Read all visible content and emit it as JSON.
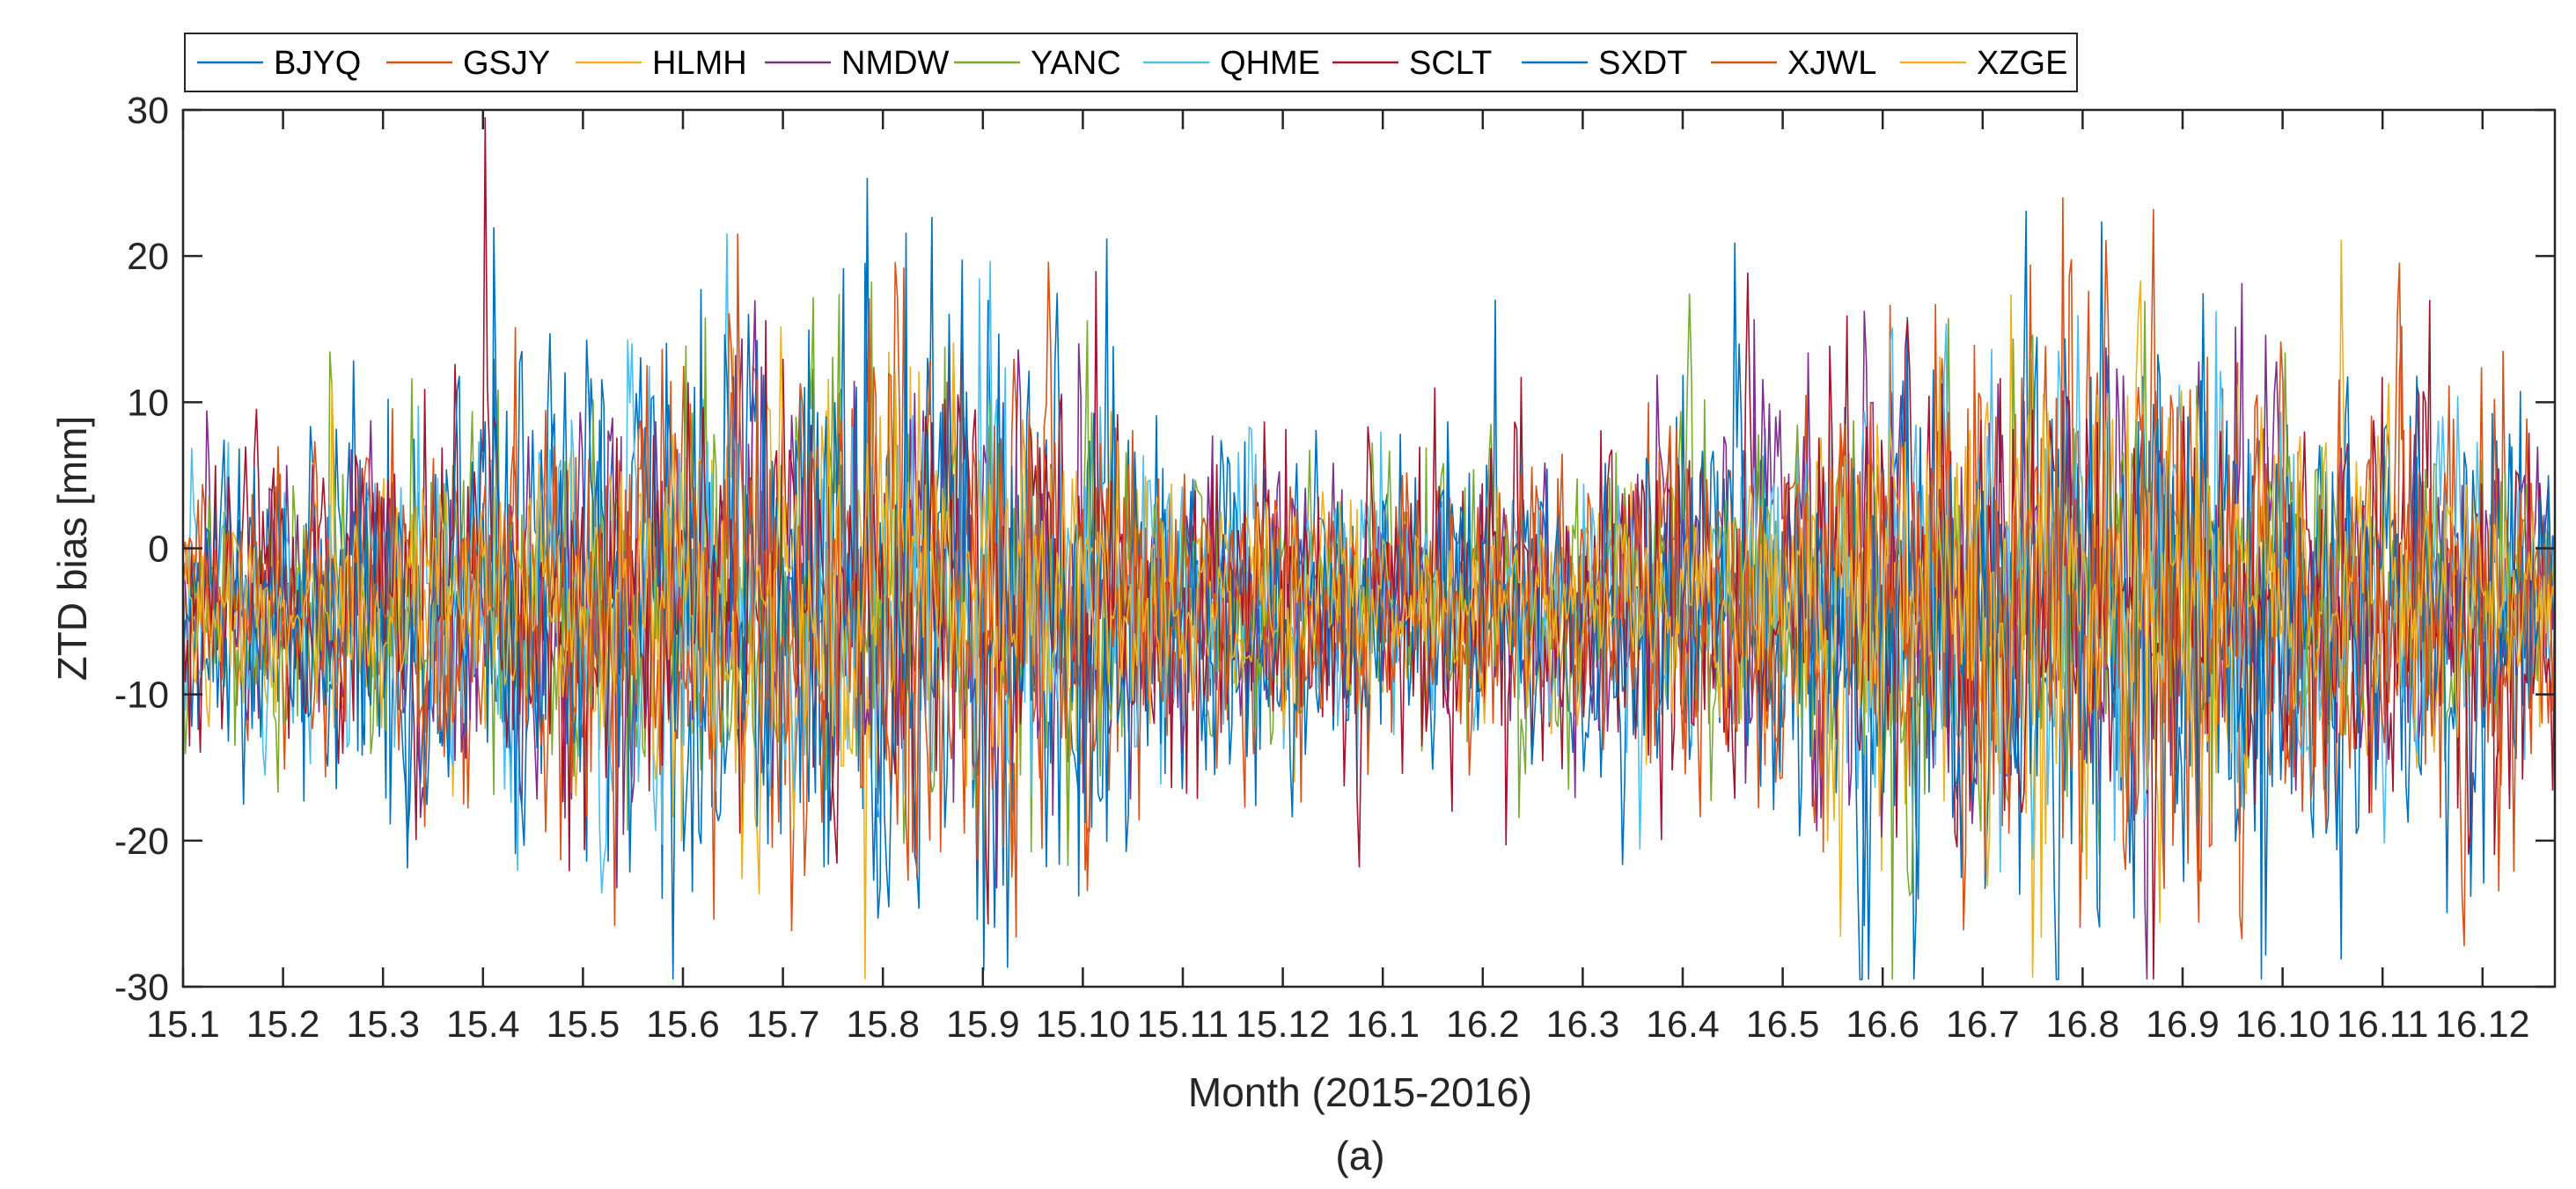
{
  "chart_data": {
    "type": "line",
    "title": "",
    "caption": "(a)",
    "xlabel": "Month (2015-2016)",
    "ylabel": "ZTD bias [mm]",
    "ylim": [
      -30,
      30
    ],
    "yticks": [
      30,
      20,
      10,
      0,
      -10,
      -20,
      -30
    ],
    "ytick_labels": [
      "30",
      "20",
      "10",
      "0",
      "-10",
      "-20",
      "-30"
    ],
    "x_categories": [
      "15.1",
      "15.2",
      "15.3",
      "15.4",
      "15.5",
      "15.6",
      "15.7",
      "15.8",
      "15.9",
      "15.10",
      "15.11",
      "15.12",
      "16.1",
      "16.2",
      "16.3",
      "16.4",
      "16.5",
      "16.6",
      "16.7",
      "16.8",
      "16.9",
      "16.10",
      "16.11",
      "16.12"
    ],
    "grid": false,
    "legend_position": "top",
    "series": [
      {
        "name": "BJYQ",
        "color": "#0072BD",
        "amplitude": 8.0,
        "noise_profile": [
          4,
          5,
          6,
          7,
          8,
          9,
          10,
          10,
          9,
          8,
          6,
          5,
          5,
          5,
          6,
          7,
          8,
          9,
          10,
          10,
          9,
          8,
          7,
          6
        ]
      },
      {
        "name": "GSJY",
        "color": "#D95319",
        "amplitude": 7.0,
        "noise_profile": [
          3,
          4,
          5,
          6,
          7,
          8,
          9,
          9,
          8,
          7,
          5,
          4,
          4,
          4,
          5,
          6,
          7,
          8,
          9,
          9,
          8,
          7,
          6,
          5
        ]
      },
      {
        "name": "HLMH",
        "color": "#EDB120",
        "amplitude": 6.0,
        "noise_profile": [
          3,
          3,
          4,
          5,
          6,
          7,
          8,
          8,
          7,
          6,
          4,
          3,
          3,
          3,
          4,
          5,
          6,
          7,
          8,
          8,
          7,
          6,
          5,
          4
        ]
      },
      {
        "name": "NMDW",
        "color": "#7E2F8E",
        "amplitude": 6.0,
        "noise_profile": [
          4,
          4,
          5,
          6,
          7,
          8,
          8,
          8,
          7,
          6,
          5,
          4,
          4,
          4,
          5,
          6,
          7,
          7,
          8,
          8,
          7,
          6,
          5,
          5
        ]
      },
      {
        "name": "YANC",
        "color": "#77AC30",
        "amplitude": 6.5,
        "noise_profile": [
          5,
          5,
          5,
          6,
          7,
          8,
          8,
          8,
          7,
          6,
          5,
          5,
          5,
          5,
          5,
          6,
          7,
          8,
          8,
          8,
          7,
          6,
          5,
          5
        ]
      },
      {
        "name": "QHME",
        "color": "#4DBEEE",
        "amplitude": 6.0,
        "noise_profile": [
          4,
          4,
          5,
          6,
          7,
          8,
          8,
          8,
          7,
          6,
          5,
          4,
          4,
          4,
          5,
          6,
          7,
          8,
          8,
          8,
          7,
          6,
          5,
          4
        ]
      },
      {
        "name": "SCLT",
        "color": "#A2142F",
        "amplitude": 7.0,
        "noise_profile": [
          6,
          6,
          6,
          6,
          7,
          8,
          8,
          8,
          7,
          6,
          6,
          6,
          6,
          6,
          6,
          7,
          8,
          8,
          8,
          8,
          7,
          7,
          7,
          7
        ]
      },
      {
        "name": "SXDT",
        "color": "#0072BD",
        "amplitude": 8.0,
        "noise_profile": [
          4,
          5,
          6,
          7,
          8,
          9,
          10,
          10,
          9,
          8,
          6,
          5,
          5,
          5,
          6,
          7,
          8,
          9,
          10,
          10,
          9,
          8,
          7,
          6
        ]
      },
      {
        "name": "XJWL",
        "color": "#D95319",
        "amplitude": 7.0,
        "noise_profile": [
          3,
          4,
          5,
          6,
          7,
          8,
          9,
          9,
          8,
          7,
          5,
          4,
          4,
          4,
          5,
          6,
          7,
          8,
          9,
          9,
          8,
          7,
          6,
          5
        ]
      },
      {
        "name": "XZGE",
        "color": "#EDB120",
        "amplitude": 4.0,
        "noise_profile": [
          3,
          3,
          3,
          4,
          4,
          5,
          6,
          6,
          5,
          4,
          3,
          3,
          3,
          3,
          3,
          4,
          5,
          6,
          6,
          6,
          5,
          4,
          4,
          3
        ]
      }
    ]
  }
}
